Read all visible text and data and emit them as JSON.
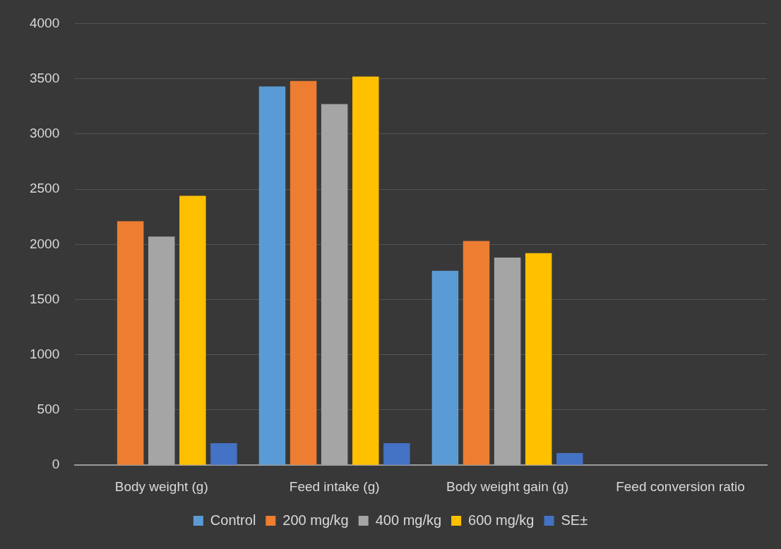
{
  "chart_data": {
    "type": "bar",
    "categories": [
      "Body weight (g)",
      "Feed intake (g)",
      "Body weight gain (g)",
      "Feed conversion ratio"
    ],
    "series": [
      {
        "name": "Control",
        "color": "#5b9bd5",
        "values": [
          null,
          3430,
          1760,
          null
        ]
      },
      {
        "name": "200 mg/kg",
        "color": "#ed7d31",
        "values": [
          2210,
          3480,
          2030,
          null
        ]
      },
      {
        "name": "400 mg/kg",
        "color": "#a5a5a5",
        "values": [
          2070,
          3270,
          1880,
          null
        ]
      },
      {
        "name": "600 mg/kg",
        "color": "#ffc000",
        "values": [
          2440,
          3520,
          1920,
          null
        ]
      },
      {
        "name": "SE±",
        "color": "#4472c4",
        "values": [
          200,
          200,
          110,
          null
        ]
      }
    ],
    "ylim": [
      0,
      4000
    ],
    "yticks": [
      0,
      500,
      1000,
      1500,
      2000,
      2500,
      3000,
      3500,
      4000
    ],
    "grid": "y",
    "legend": "bottom"
  }
}
